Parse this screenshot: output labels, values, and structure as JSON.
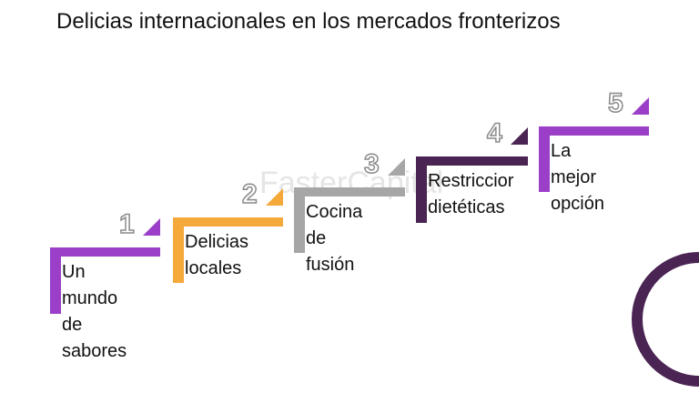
{
  "title": "Delicias internacionales en los mercados fronterizos",
  "watermark": "FasterCapital",
  "steps": [
    {
      "number": "1",
      "label": "Un mundo\nde\nsabores",
      "color": "#9b3fc8"
    },
    {
      "number": "2",
      "label": "Delicias\nlocales",
      "color": "#f5a93a"
    },
    {
      "number": "3",
      "label": "Cocina de\nfusión",
      "color": "#a6a6a6"
    },
    {
      "number": "4",
      "label": "Restriccior\ndietéticas",
      "color": "#4a2452"
    },
    {
      "number": "5",
      "label": "La mejor\nopción",
      "color": "#9b3fc8"
    }
  ],
  "ring_color": "#4a2452"
}
